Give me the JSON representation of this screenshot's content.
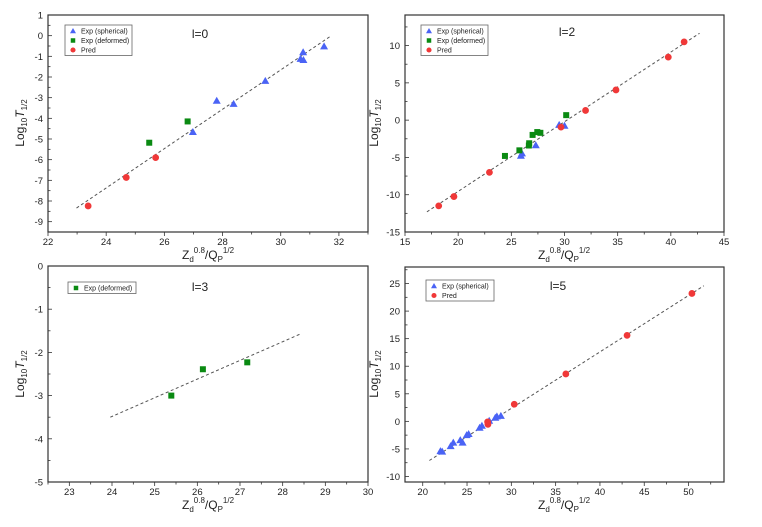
{
  "chart_data": [
    {
      "type": "scatter",
      "title": "l=0",
      "xlabel": {
        "base": "Z",
        "sub": "d",
        "sup": "0.8",
        "mid": "/Q",
        "sub2": "P",
        "sup2": "1/2"
      },
      "ylabel": {
        "base": "Log",
        "sub": "10",
        "ital": "T",
        "sub2": "1/2"
      },
      "xlim": [
        22,
        33
      ],
      "ylim": [
        -9.5,
        1
      ],
      "xticks": [
        22,
        24,
        26,
        28,
        30,
        32
      ],
      "yticks": [
        1,
        0,
        -1,
        -2,
        -3,
        -4,
        -5,
        -6,
        -7,
        -8,
        -9
      ],
      "legend": [
        "Exp (spherical)",
        "Exp (deformed)",
        "Pred"
      ],
      "legend_position": "top-left",
      "series": [
        {
          "name": "Exp (spherical)",
          "marker": "triangle",
          "color": "#4a63f5",
          "points": [
            [
              31.49,
              -0.52
            ],
            [
              30.77,
              -0.8
            ],
            [
              30.68,
              -1.12
            ],
            [
              30.78,
              -1.18
            ],
            [
              29.47,
              -2.19
            ],
            [
              28.38,
              -3.3
            ],
            [
              27.8,
              -3.15
            ],
            [
              26.98,
              -4.66
            ]
          ]
        },
        {
          "name": "Exp (deformed)",
          "marker": "square",
          "color": "#0a8a12",
          "points": [
            [
              26.8,
              -4.15
            ],
            [
              25.48,
              -5.18
            ]
          ]
        },
        {
          "name": "Pred",
          "marker": "circle",
          "color": "#f03838",
          "points": [
            [
              25.7,
              -5.9
            ],
            [
              24.69,
              -6.86
            ],
            [
              23.38,
              -8.24
            ]
          ]
        }
      ],
      "fit_line": [
        [
          22.98,
          -8.34
        ],
        [
          31.74,
          0.0
        ]
      ]
    },
    {
      "type": "scatter",
      "title": "l=2",
      "xlabel": {
        "base": "Z",
        "sub": "d",
        "sup": "0.8",
        "mid": "/Q",
        "sub2": "P",
        "sup2": "1/2"
      },
      "ylabel": {
        "base": "Log",
        "sub": "10",
        "ital": "T",
        "sub2": "1/2"
      },
      "xlim": [
        15,
        45
      ],
      "ylim": [
        -15,
        14.1
      ],
      "xticks": [
        15,
        20,
        25,
        30,
        35,
        40,
        45
      ],
      "yticks": [
        10,
        5,
        0,
        -5,
        -10,
        -15
      ],
      "legend": [
        "Exp (spherical)",
        "Exp (deformed)",
        "Pred"
      ],
      "legend_position": "top-left",
      "series": [
        {
          "name": "Exp (spherical)",
          "marker": "triangle",
          "color": "#4a63f5",
          "points": [
            [
              30.0,
              -0.76
            ],
            [
              29.5,
              -0.63
            ],
            [
              27.3,
              -3.37
            ],
            [
              26.0,
              -4.45
            ],
            [
              25.9,
              -4.77
            ]
          ]
        },
        {
          "name": "Exp (deformed)",
          "marker": "square",
          "color": "#0a8a12",
          "points": [
            [
              30.16,
              0.67
            ],
            [
              27.73,
              -1.7
            ],
            [
              27.44,
              -1.6
            ],
            [
              27.0,
              -1.98
            ],
            [
              26.68,
              -3.1
            ],
            [
              26.65,
              -3.4
            ],
            [
              25.76,
              -4.05
            ],
            [
              24.4,
              -4.8
            ]
          ]
        },
        {
          "name": "Pred",
          "marker": "circle",
          "color": "#f03838",
          "points": [
            [
              41.25,
              10.5
            ],
            [
              39.76,
              8.45
            ],
            [
              34.84,
              4.05
            ],
            [
              31.98,
              1.3
            ],
            [
              29.67,
              -0.94
            ],
            [
              22.94,
              -7.0
            ],
            [
              19.6,
              -10.25
            ],
            [
              18.17,
              -11.5
            ]
          ]
        }
      ],
      "fit_line": [
        [
          17.06,
          -12.3
        ],
        [
          42.7,
          11.65
        ]
      ]
    },
    {
      "type": "scatter",
      "title": "l=3",
      "xlabel": {
        "base": "Z",
        "sub": "d",
        "sup": "0.8",
        "mid": "/Q",
        "sub2": "P",
        "sup2": "1/2"
      },
      "ylabel": {
        "base": "Log",
        "sub": "10",
        "ital": "T",
        "sub2": "1/2"
      },
      "xlim": [
        22.5,
        30
      ],
      "ylim": [
        -5,
        0
      ],
      "xticks": [
        23,
        24,
        25,
        26,
        27,
        28,
        29,
        30
      ],
      "yticks": [
        0,
        -1,
        -2,
        -3,
        -4,
        -5
      ],
      "legend": [
        "Exp (deformed)"
      ],
      "legend_position": "top-left",
      "series": [
        {
          "name": "Exp (deformed)",
          "marker": "square",
          "color": "#0a8a12",
          "points": [
            [
              25.39,
              -3.0
            ],
            [
              26.13,
              -2.39
            ],
            [
              27.17,
              -2.23
            ]
          ]
        }
      ],
      "fit_line": [
        [
          23.96,
          -3.5
        ],
        [
          28.4,
          -1.58
        ]
      ]
    },
    {
      "type": "scatter",
      "title": "l=5",
      "xlabel": {
        "base": "Z",
        "sub": "d",
        "sup": "0.8",
        "mid": "/Q",
        "sub2": "P",
        "sup2": "1/2"
      },
      "ylabel": {
        "base": "Log",
        "sub": "10",
        "ital": "T",
        "sub2": "1/2"
      },
      "xlim": [
        18,
        54
      ],
      "ylim": [
        -11,
        28
      ],
      "xticks": [
        20,
        25,
        30,
        35,
        40,
        45,
        50
      ],
      "yticks": [
        25,
        20,
        15,
        10,
        5,
        0,
        -5,
        -10
      ],
      "legend": [
        "Exp (spherical)",
        "Pred"
      ],
      "legend_position": "top-left",
      "series": [
        {
          "name": "Exp (spherical)",
          "marker": "triangle",
          "color": "#4a63f5",
          "points": [
            [
              28.82,
              1.0
            ],
            [
              28.37,
              0.9
            ],
            [
              28.19,
              0.66
            ],
            [
              27.5,
              0.1
            ],
            [
              26.68,
              -0.8
            ],
            [
              26.42,
              -1.15
            ],
            [
              25.18,
              -2.3
            ],
            [
              24.96,
              -2.5
            ],
            [
              24.5,
              -3.86
            ],
            [
              24.24,
              -3.4
            ],
            [
              23.45,
              -3.86
            ],
            [
              23.15,
              -4.5
            ],
            [
              22.2,
              -5.5
            ],
            [
              22.0,
              -5.4
            ]
          ]
        },
        {
          "name": "Pred",
          "marker": "circle",
          "color": "#f03838",
          "points": [
            [
              50.38,
              23.2
            ],
            [
              43.06,
              15.6
            ],
            [
              36.15,
              8.6
            ],
            [
              30.33,
              3.1
            ],
            [
              27.36,
              -0.54
            ],
            [
              27.32,
              -0.1
            ]
          ]
        }
      ],
      "fit_line": [
        [
          20.75,
          -7.1
        ],
        [
          51.73,
          24.6
        ]
      ]
    }
  ]
}
